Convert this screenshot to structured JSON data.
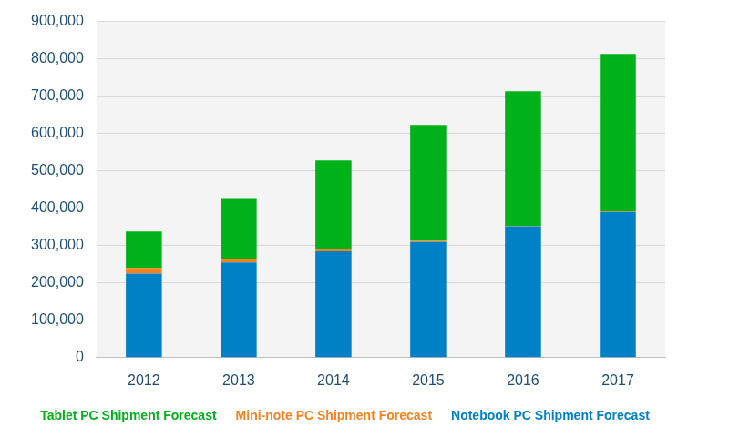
{
  "chart_data": {
    "type": "bar",
    "categories": [
      "2012",
      "2013",
      "2014",
      "2015",
      "2016",
      "2017"
    ],
    "series": [
      {
        "name": "Tablet PC Shipment Forecast",
        "color": "#00b21a",
        "values": [
          98000,
          160000,
          238000,
          310000,
          360000,
          421000
        ]
      },
      {
        "name": "Mini-note PC Shipment Forecast",
        "color": "#f5821f",
        "values": [
          15000,
          10000,
          5000,
          3000,
          1000,
          2000
        ]
      },
      {
        "name": "Notebook PC Shipment Forecast",
        "color": "#0080c6",
        "values": [
          225000,
          255000,
          285000,
          310000,
          352000,
          390000
        ]
      }
    ],
    "stacked": true,
    "ylim": [
      0,
      900000
    ],
    "yticks": [
      {
        "value": 0,
        "label": "0"
      },
      {
        "value": 100000,
        "label": "100,000"
      },
      {
        "value": 200000,
        "label": "200,000"
      },
      {
        "value": 300000,
        "label": "300,000"
      },
      {
        "value": 400000,
        "label": "400,000"
      },
      {
        "value": 500000,
        "label": "500,000"
      },
      {
        "value": 600000,
        "label": "600,000"
      },
      {
        "value": 700000,
        "label": "700,000"
      },
      {
        "value": 800000,
        "label": "800,000"
      },
      {
        "value": 900000,
        "label": "900,000"
      }
    ],
    "grid": true,
    "legend": "bottom"
  }
}
